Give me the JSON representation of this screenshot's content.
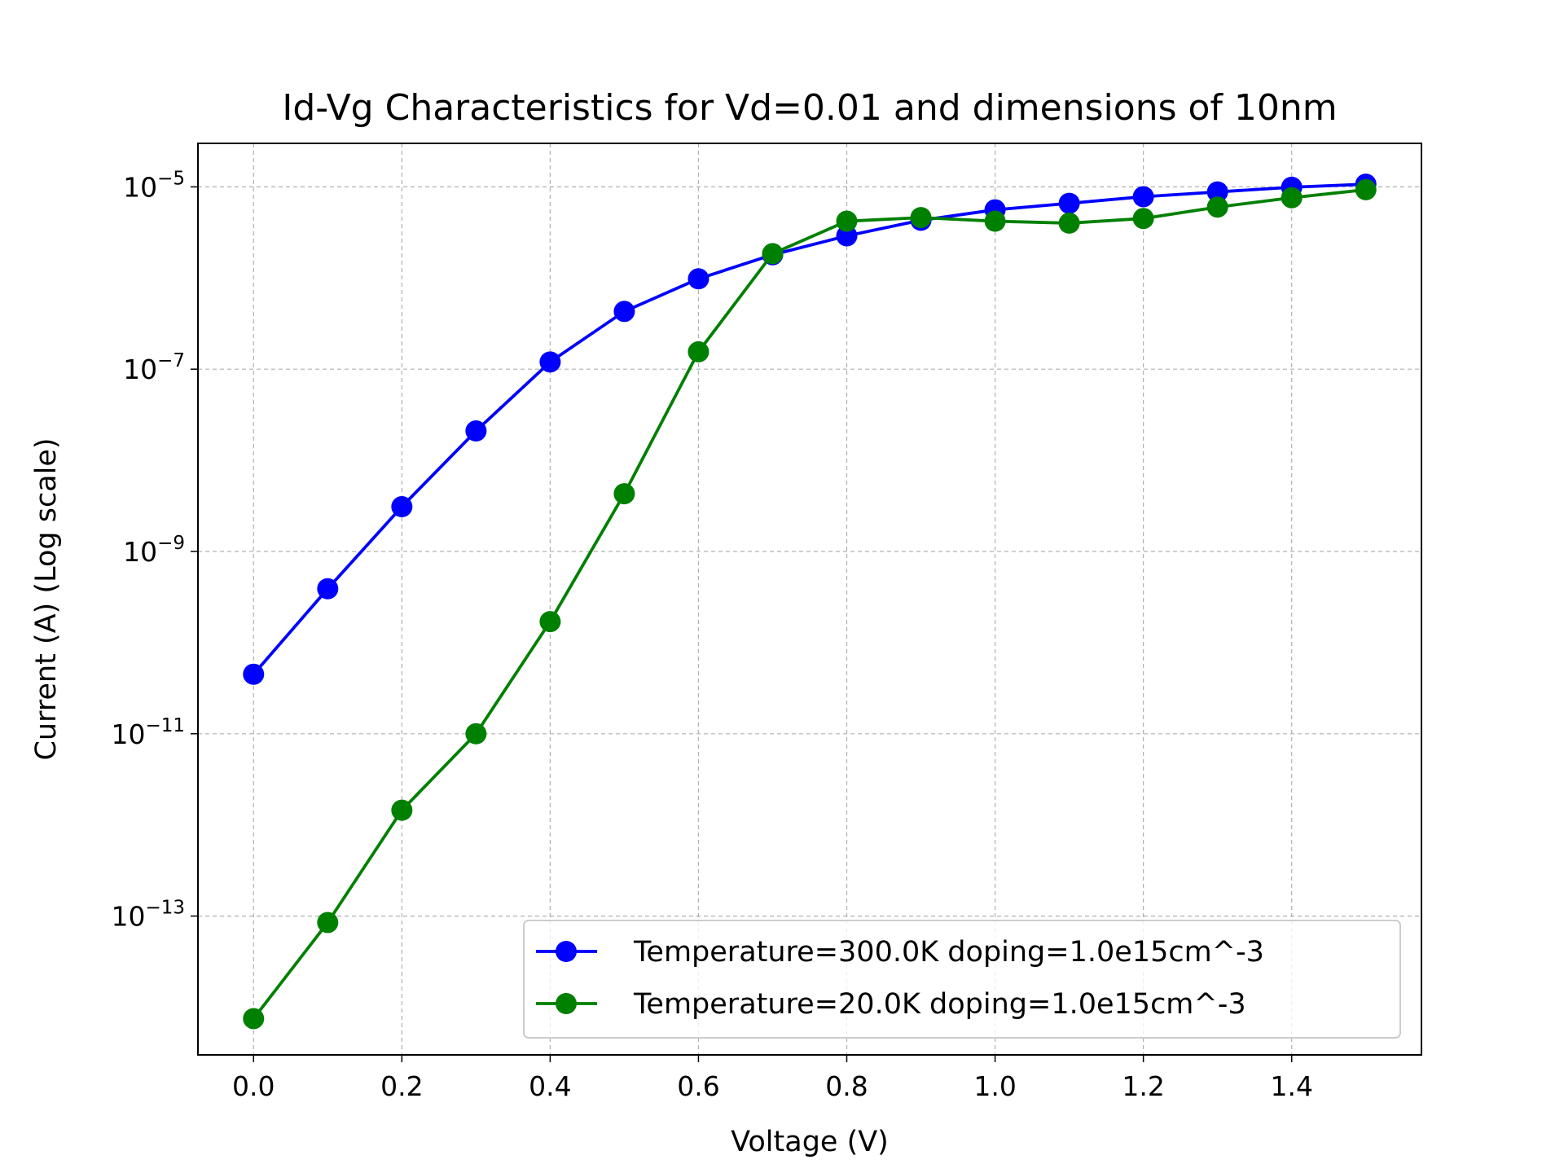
{
  "chart_data": {
    "type": "line",
    "title": "Id-Vg Characteristics for Vd=0.01 and dimensions of 10nm",
    "xlabel": "Voltage (V)",
    "ylabel": "Current (A) (Log scale)",
    "xlim": [
      -0.075,
      1.575
    ],
    "ylim": [
      3e-15,
      3e-05
    ],
    "yscale": "log",
    "x_ticks": [
      "0.0",
      "0.2",
      "0.4",
      "0.6",
      "0.8",
      "1.0",
      "1.2",
      "1.4"
    ],
    "y_ticks": [
      {
        "base": "10",
        "exp": "−13"
      },
      {
        "base": "10",
        "exp": "−11"
      },
      {
        "base": "10",
        "exp": "−9"
      },
      {
        "base": "10",
        "exp": "−7"
      },
      {
        "base": "10",
        "exp": "−5"
      }
    ],
    "grid": true,
    "legend_position": "lower-right",
    "x": [
      0.0,
      0.1,
      0.2,
      0.3,
      0.4,
      0.5,
      0.6,
      0.7,
      0.8,
      0.9,
      1.0,
      1.1,
      1.2,
      1.3,
      1.4,
      1.5
    ],
    "series": [
      {
        "name": "Temperature=300.0K doping=1.0e15cm^-3",
        "color": "#0000ff",
        "values": [
          4.5e-11,
          3.9e-10,
          3.1e-09,
          2.1e-08,
          1.2e-07,
          4.3e-07,
          9.8e-07,
          1.8e-06,
          2.9e-06,
          4.3e-06,
          5.6e-06,
          6.6e-06,
          7.8e-06,
          8.8e-06,
          9.9e-06,
          1.07e-05
        ]
      },
      {
        "name": "Temperature=20.0K doping=1.0e15cm^-3",
        "color": "#008000",
        "values": [
          7.5e-15,
          8.5e-14,
          1.45e-12,
          1e-11,
          1.7e-10,
          4.3e-09,
          1.55e-07,
          1.85e-06,
          4.2e-06,
          4.6e-06,
          4.2e-06,
          4e-06,
          4.5e-06,
          6e-06,
          7.6e-06,
          9.3e-06
        ]
      }
    ]
  }
}
